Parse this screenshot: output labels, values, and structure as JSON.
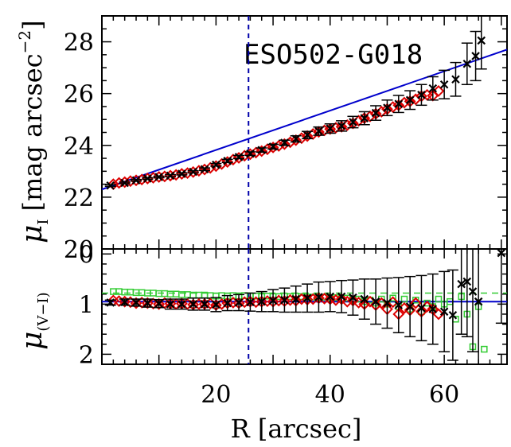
{
  "chart_data": [
    {
      "panel": "top",
      "type": "scatter",
      "annotation": "ESO502-G018",
      "ylabel_main": "μ",
      "ylabel_sub": "I",
      "ylabel_unit": "[mag arcsec",
      "ylabel_unit_sup": "−2",
      "ylabel_unit_close": "]",
      "xlim": [
        0,
        71
      ],
      "ylim": [
        29.0,
        20.0
      ],
      "y_inverted": true,
      "yticks": [
        "20",
        "22",
        "24",
        "26",
        "28"
      ],
      "vline_x": 25.7,
      "fit_line": {
        "x": [
          0,
          71
        ],
        "y": [
          22.3,
          27.7
        ],
        "color": "#0000cc"
      },
      "series": [
        {
          "marker": "x",
          "color": "#000000",
          "x": [
            1.5,
            4,
            6,
            8,
            10,
            12,
            14,
            16,
            18,
            20,
            22,
            24,
            26,
            28,
            30,
            32,
            34,
            36,
            38,
            40,
            42,
            44,
            46,
            48,
            50,
            52,
            54,
            56,
            58,
            60,
            62,
            64,
            65.5,
            66.5
          ],
          "y": [
            22.45,
            22.55,
            22.65,
            22.72,
            22.78,
            22.83,
            22.9,
            22.98,
            23.08,
            23.25,
            23.4,
            23.55,
            23.68,
            23.82,
            23.95,
            24.1,
            24.25,
            24.4,
            24.55,
            24.65,
            24.75,
            24.9,
            25.05,
            25.25,
            25.45,
            25.6,
            25.75,
            25.95,
            26.2,
            26.35,
            26.55,
            27.15,
            27.45,
            28.05
          ],
          "yerr": [
            0.03,
            0.03,
            0.03,
            0.03,
            0.03,
            0.04,
            0.04,
            0.04,
            0.05,
            0.05,
            0.06,
            0.06,
            0.07,
            0.08,
            0.09,
            0.1,
            0.12,
            0.14,
            0.16,
            0.18,
            0.2,
            0.22,
            0.25,
            0.28,
            0.3,
            0.33,
            0.36,
            0.4,
            0.45,
            0.55,
            0.65,
            0.8,
            0.95,
            1.1
          ]
        },
        {
          "marker": "diamond",
          "color": "#dd0000",
          "x": [
            2,
            3,
            4,
            5,
            6,
            7,
            8,
            9,
            10,
            11,
            12,
            13,
            14,
            15,
            16,
            17,
            18,
            19,
            20,
            21,
            22,
            23,
            24,
            25,
            26,
            27,
            28,
            29,
            30,
            31,
            32,
            33,
            34,
            35,
            36,
            37,
            38,
            39,
            40,
            41,
            42,
            43,
            44,
            45,
            46,
            47,
            48,
            49,
            50,
            51,
            52,
            53,
            54,
            55,
            56,
            57,
            58,
            59
          ],
          "y": [
            22.5,
            22.55,
            22.58,
            22.62,
            22.65,
            22.68,
            22.72,
            22.75,
            22.78,
            22.8,
            22.83,
            22.86,
            22.9,
            22.93,
            22.97,
            23.02,
            23.07,
            23.13,
            23.2,
            23.28,
            23.36,
            23.45,
            23.52,
            23.6,
            23.66,
            23.72,
            23.78,
            23.85,
            23.92,
            23.98,
            24.05,
            24.12,
            24.2,
            24.28,
            24.36,
            24.44,
            24.52,
            24.58,
            24.63,
            24.68,
            24.72,
            24.78,
            24.85,
            24.95,
            25.05,
            25.12,
            25.22,
            25.3,
            25.4,
            25.48,
            25.55,
            25.65,
            25.7,
            25.78,
            25.9,
            25.95,
            25.92,
            26.1
          ]
        }
      ]
    },
    {
      "panel": "bottom",
      "type": "scatter",
      "ylabel_main": "μ",
      "ylabel_sub": "(V−I)",
      "xlim": [
        0,
        71
      ],
      "ylim": [
        -0.1,
        2.2
      ],
      "yticks": [
        "0",
        "1",
        "2"
      ],
      "xticks": [
        "20",
        "40",
        "60"
      ],
      "xlabel": "R [arcsec]",
      "vline_x": 25.7,
      "hline_blue": 0.95,
      "hline_green": 0.78,
      "series": [
        {
          "marker": "x",
          "color": "#000000",
          "x": [
            1.5,
            4,
            6,
            8,
            10,
            12,
            14,
            16,
            18,
            20,
            22,
            24,
            26,
            28,
            30,
            32,
            34,
            36,
            38,
            40,
            42,
            44,
            46,
            48,
            50,
            52,
            54,
            56,
            58,
            60,
            61.5,
            63,
            64,
            65,
            66,
            70
          ],
          "y": [
            0.97,
            0.96,
            0.97,
            0.98,
            0.99,
            1.0,
            1.0,
            1.0,
            1.0,
            1.01,
            0.98,
            0.97,
            0.96,
            0.95,
            0.93,
            0.92,
            0.9,
            0.88,
            0.86,
            0.85,
            0.85,
            0.87,
            0.9,
            0.95,
            0.98,
            1.02,
            1.05,
            1.08,
            1.1,
            1.15,
            1.22,
            0.6,
            0.55,
            0.75,
            0.95,
            -0.02
          ],
          "yerr": [
            0.05,
            0.06,
            0.07,
            0.08,
            0.08,
            0.1,
            0.1,
            0.12,
            0.12,
            0.14,
            0.15,
            0.16,
            0.18,
            0.2,
            0.22,
            0.24,
            0.26,
            0.28,
            0.3,
            0.3,
            0.32,
            0.35,
            0.4,
            0.45,
            0.5,
            0.55,
            0.6,
            0.65,
            0.7,
            0.8,
            0.9,
            1.0,
            1.1,
            1.2,
            1.3,
            1.4
          ]
        },
        {
          "marker": "diamond",
          "color": "#dd0000",
          "x": [
            2,
            3,
            4,
            5,
            6,
            7,
            8,
            9,
            10,
            11,
            12,
            13,
            14,
            15,
            16,
            17,
            18,
            19,
            20,
            21,
            22,
            23,
            24,
            25,
            26,
            27,
            28,
            29,
            30,
            31,
            32,
            33,
            34,
            35,
            36,
            37,
            38,
            39,
            40,
            41,
            42,
            43,
            44,
            45,
            46,
            47,
            48,
            49,
            50,
            51,
            52,
            53,
            54,
            55,
            56,
            57,
            58,
            59
          ],
          "y": [
            0.93,
            0.94,
            0.95,
            0.96,
            0.98,
            0.97,
            0.98,
            0.99,
            1.0,
            0.98,
            0.99,
            1.0,
            0.99,
            1.0,
            1.01,
            1.0,
            1.0,
            0.99,
            1.02,
            1.0,
            0.98,
            0.97,
            0.98,
            0.96,
            0.95,
            0.96,
            0.95,
            0.94,
            0.95,
            0.93,
            0.94,
            0.92,
            0.93,
            0.9,
            0.91,
            0.9,
            0.88,
            0.89,
            0.9,
            0.92,
            0.9,
            0.95,
            0.93,
            0.97,
            1.0,
            0.95,
            1.02,
            0.98,
            1.1,
            0.96,
            1.2,
            1.08,
            1.12,
            0.98,
            1.15,
            1.05,
            1.1,
            1.2
          ]
        },
        {
          "marker": "square",
          "color": "#33cc33",
          "x": [
            2,
            3,
            4,
            5,
            6,
            7,
            8,
            9,
            10,
            11,
            12,
            13,
            14,
            15,
            16,
            17,
            18,
            19,
            20,
            21,
            22,
            23,
            24,
            25,
            26,
            27,
            28,
            29,
            30,
            31,
            32,
            33,
            34,
            35,
            36,
            37,
            38,
            39,
            40,
            41,
            42,
            43,
            44,
            45,
            46,
            47,
            48,
            49,
            50,
            51,
            52,
            53,
            54,
            55,
            56,
            57,
            58,
            59,
            60,
            61,
            62,
            63,
            64,
            65,
            66,
            67
          ],
          "y": [
            0.75,
            0.75,
            0.76,
            0.76,
            0.77,
            0.77,
            0.78,
            0.78,
            0.79,
            0.79,
            0.8,
            0.8,
            0.81,
            0.81,
            0.82,
            0.82,
            0.82,
            0.83,
            0.84,
            0.83,
            0.84,
            0.83,
            0.84,
            0.83,
            0.84,
            0.84,
            0.85,
            0.84,
            0.85,
            0.85,
            0.84,
            0.85,
            0.84,
            0.85,
            0.86,
            0.86,
            0.87,
            0.86,
            0.88,
            0.87,
            0.9,
            0.88,
            0.92,
            0.9,
            0.95,
            0.92,
            0.98,
            0.9,
            1.0,
            0.88,
            1.05,
            0.9,
            1.1,
            0.92,
            1.15,
            0.98,
            1.05,
            0.9,
            1.0,
            0.95,
            1.3,
            0.85,
            1.2,
            1.85,
            1.05,
            1.9
          ]
        }
      ]
    }
  ]
}
